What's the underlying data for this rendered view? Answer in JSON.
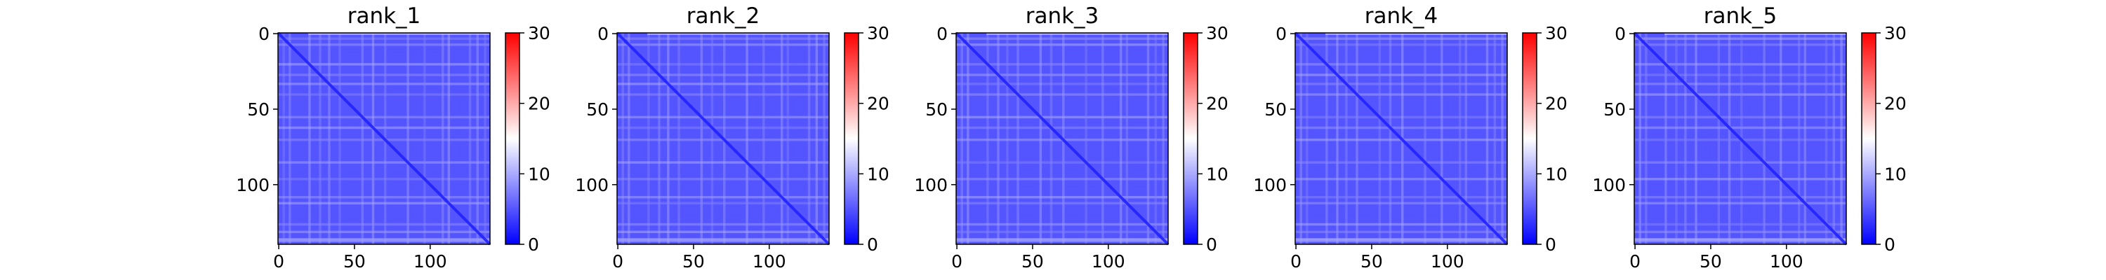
{
  "chart_data": [
    {
      "type": "heatmap",
      "title": "rank_1",
      "matrix_size": 140,
      "xticks": [
        0,
        50,
        100
      ],
      "yticks": [
        0,
        50,
        100
      ],
      "colorbar": {
        "min": 0,
        "max": 30,
        "ticks": [
          0,
          10,
          20,
          30
        ],
        "colormap": "bwr"
      },
      "typical_value": 5,
      "diagonal_value": 2
    },
    {
      "type": "heatmap",
      "title": "rank_2",
      "matrix_size": 140,
      "xticks": [
        0,
        50,
        100
      ],
      "yticks": [
        0,
        50,
        100
      ],
      "colorbar": {
        "min": 0,
        "max": 30,
        "ticks": [
          0,
          10,
          20,
          30
        ],
        "colormap": "bwr"
      },
      "typical_value": 5,
      "diagonal_value": 2
    },
    {
      "type": "heatmap",
      "title": "rank_3",
      "matrix_size": 140,
      "xticks": [
        0,
        50,
        100
      ],
      "yticks": [
        0,
        50,
        100
      ],
      "colorbar": {
        "min": 0,
        "max": 30,
        "ticks": [
          0,
          10,
          20,
          30
        ],
        "colormap": "bwr"
      },
      "typical_value": 5,
      "diagonal_value": 2
    },
    {
      "type": "heatmap",
      "title": "rank_4",
      "matrix_size": 140,
      "xticks": [
        0,
        50,
        100
      ],
      "yticks": [
        0,
        50,
        100
      ],
      "colorbar": {
        "min": 0,
        "max": 30,
        "ticks": [
          0,
          10,
          20,
          30
        ],
        "colormap": "bwr"
      },
      "typical_value": 5,
      "diagonal_value": 2
    },
    {
      "type": "heatmap",
      "title": "rank_5",
      "matrix_size": 140,
      "xticks": [
        0,
        50,
        100
      ],
      "yticks": [
        0,
        50,
        100
      ],
      "colorbar": {
        "min": 0,
        "max": 30,
        "ticks": [
          0,
          10,
          20,
          30
        ],
        "colormap": "bwr"
      },
      "typical_value": 5,
      "diagonal_value": 2
    }
  ],
  "colors": {
    "low": "#0000ff",
    "mid": "#ffffff",
    "high": "#ff0000"
  }
}
